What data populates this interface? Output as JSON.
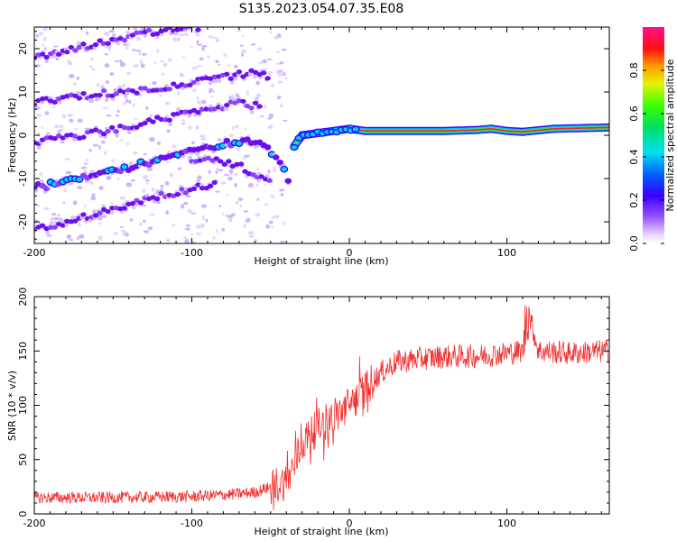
{
  "title": "S135.2023.054.07.35.E08",
  "chart_data": [
    {
      "type": "heatmap",
      "xlabel": "Height of straight line (km)",
      "ylabel": "Frequency (Hz)",
      "xlim": [
        -200,
        165
      ],
      "ylim": [
        -25,
        25
      ],
      "xticks": [
        -200,
        -100,
        0,
        100
      ],
      "yticks": [
        -20,
        -10,
        0,
        10,
        20
      ],
      "colorbar": {
        "label": "Normalized spectral amplitude",
        "range": [
          0.0,
          1.0
        ],
        "ticks": [
          "0.0",
          "0.2",
          "0.4",
          "0.6",
          "0.8"
        ],
        "colormap": "white-violet-blue-cyan-green-yellow-orange-red-magenta"
      },
      "features": [
        {
          "name": "mirror line",
          "x": [
            -200,
            -170,
            -150,
            -130,
            -110,
            -95
          ],
          "y": [
            18,
            20.5,
            22,
            23.5,
            24.5,
            25
          ]
        },
        {
          "name": "mirror line",
          "x": [
            -200,
            -160,
            -130,
            -100,
            -80,
            -60,
            -50
          ],
          "y": [
            7.5,
            9.5,
            10.5,
            12,
            13.5,
            14.5,
            13.5
          ]
        },
        {
          "name": "mirror line",
          "x": [
            -200,
            -170,
            -140,
            -110,
            -90,
            -70,
            -55
          ],
          "y": [
            -1.5,
            0,
            2,
            4.5,
            6,
            7.5,
            6.5
          ]
        },
        {
          "name": "main line",
          "x": [
            -200,
            -180,
            -160,
            -140,
            -120,
            -100,
            -80,
            -65,
            -55,
            -48,
            -44,
            -40,
            -38
          ],
          "y": [
            -12,
            -11,
            -9,
            -7.5,
            -5.5,
            -3.5,
            -2,
            -1.5,
            -2.5,
            -4,
            -6,
            -9,
            -12
          ]
        },
        {
          "name": "mirror line",
          "x": [
            -200,
            -180,
            -160,
            -140,
            -120,
            -100,
            -85
          ],
          "y": [
            -22,
            -20,
            -18,
            -16,
            -14,
            -12.5,
            -11
          ]
        },
        {
          "name": "mirror line",
          "x": [
            -100,
            -90,
            -80,
            -70,
            -60,
            -50
          ],
          "y": [
            -6,
            -5.5,
            -6,
            -7,
            -9,
            -11
          ]
        },
        {
          "name": "main line",
          "x": [
            -35,
            -30,
            -20,
            -10,
            0,
            10,
            40,
            60,
            80,
            90,
            100,
            110,
            130,
            165
          ],
          "y": [
            -2.5,
            0,
            0.5,
            1,
            1.5,
            1,
            1,
            1,
            1.2,
            1.5,
            1,
            0.8,
            1.5,
            1.8
          ]
        }
      ]
    },
    {
      "type": "line",
      "xlabel": "Height of straight line (km)",
      "ylabel": "SNR (10 * v/v)",
      "xlim": [
        -200,
        165
      ],
      "ylim": [
        0,
        200
      ],
      "xticks": [
        -200,
        -100,
        0,
        100
      ],
      "yticks": [
        0,
        50,
        100,
        150,
        200
      ],
      "color": "#f03030",
      "series": [
        {
          "x": [
            -200,
            -150,
            -100,
            -75,
            -60,
            -50,
            -40,
            -35,
            -30,
            -20,
            -10,
            0,
            10,
            20,
            30,
            40,
            60,
            80,
            100,
            110,
            113,
            120,
            140,
            165
          ],
          "y": [
            15,
            15,
            16,
            18,
            20,
            25,
            30,
            45,
            65,
            80,
            90,
            100,
            115,
            130,
            140,
            142,
            145,
            145,
            148,
            150,
            190,
            150,
            148,
            150
          ]
        }
      ]
    }
  ]
}
